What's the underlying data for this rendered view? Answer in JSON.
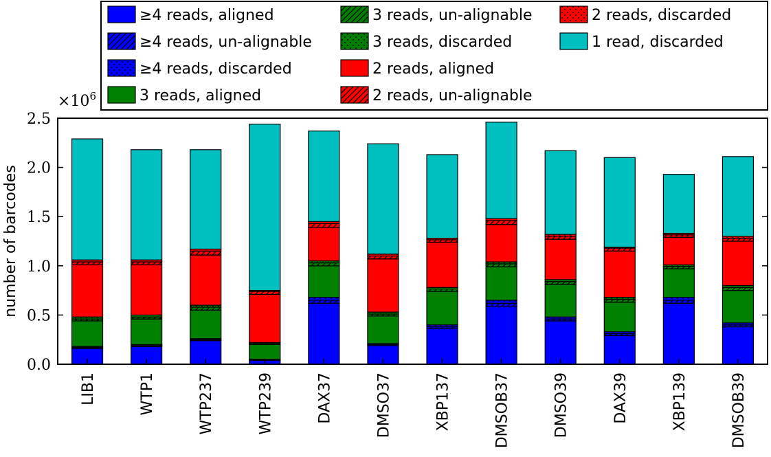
{
  "chart_data": {
    "type": "bar",
    "stacked": true,
    "ylabel": "number of barcodes",
    "y_multiplier": "×10",
    "y_multiplier_exp": "6",
    "ylim": [
      0,
      2.5
    ],
    "yticks": [
      0.0,
      0.5,
      1.0,
      1.5,
      2.0,
      2.5
    ],
    "ytick_labels": [
      "0.0",
      "0.5",
      "1.0",
      "1.5",
      "2.0",
      "2.5"
    ],
    "legend_location": "top",
    "categories": [
      "LIB1",
      "WTP1",
      "WTP237",
      "WTP239",
      "DAX37",
      "DMSO37",
      "XBP137",
      "DMSOB37",
      "DMSO39",
      "DAX39",
      "XBP139",
      "DMSOB39"
    ],
    "series": [
      {
        "name": "≥4 reads, aligned",
        "color": "#0000ff",
        "hatch": "none",
        "values": [
          0.16,
          0.18,
          0.24,
          0.04,
          0.62,
          0.19,
          0.36,
          0.59,
          0.44,
          0.29,
          0.62,
          0.38
        ]
      },
      {
        "name": "≥4 reads, un-alignable",
        "color": "#0000ff",
        "hatch": "diagonal",
        "values": [
          0.01,
          0.01,
          0.01,
          0.005,
          0.03,
          0.01,
          0.02,
          0.03,
          0.02,
          0.02,
          0.03,
          0.02
        ]
      },
      {
        "name": "≥4 reads, discarded",
        "color": "#0000ff",
        "hatch": "dots",
        "values": [
          0.01,
          0.01,
          0.01,
          0.005,
          0.03,
          0.01,
          0.02,
          0.03,
          0.02,
          0.02,
          0.03,
          0.02
        ]
      },
      {
        "name": "3 reads, aligned",
        "color": "#008000",
        "hatch": "none",
        "values": [
          0.26,
          0.26,
          0.29,
          0.15,
          0.32,
          0.28,
          0.34,
          0.34,
          0.33,
          0.3,
          0.29,
          0.33
        ]
      },
      {
        "name": "3 reads, un-alignable",
        "color": "#008000",
        "hatch": "diagonal",
        "values": [
          0.02,
          0.02,
          0.03,
          0.01,
          0.03,
          0.02,
          0.025,
          0.03,
          0.03,
          0.03,
          0.025,
          0.03
        ]
      },
      {
        "name": "3 reads, discarded",
        "color": "#008000",
        "hatch": "dots",
        "values": [
          0.02,
          0.02,
          0.02,
          0.01,
          0.02,
          0.02,
          0.015,
          0.02,
          0.02,
          0.02,
          0.015,
          0.02
        ]
      },
      {
        "name": "2 reads, aligned",
        "color": "#ff0000",
        "hatch": "none",
        "values": [
          0.53,
          0.51,
          0.51,
          0.49,
          0.34,
          0.54,
          0.46,
          0.38,
          0.41,
          0.47,
          0.28,
          0.45
        ]
      },
      {
        "name": "2 reads, un-alignable",
        "color": "#ff0000",
        "hatch": "diagonal",
        "values": [
          0.03,
          0.03,
          0.04,
          0.03,
          0.04,
          0.03,
          0.025,
          0.04,
          0.03,
          0.03,
          0.025,
          0.03
        ]
      },
      {
        "name": "2 reads, discarded",
        "color": "#ff0000",
        "hatch": "dots",
        "values": [
          0.02,
          0.02,
          0.02,
          0.01,
          0.02,
          0.02,
          0.015,
          0.02,
          0.02,
          0.01,
          0.015,
          0.02
        ]
      },
      {
        "name": "1 read, discarded",
        "color": "#00bfbf",
        "hatch": "none",
        "values": [
          1.23,
          1.12,
          1.01,
          1.69,
          0.92,
          1.12,
          0.85,
          0.98,
          0.85,
          0.91,
          0.6,
          0.81
        ]
      }
    ]
  }
}
